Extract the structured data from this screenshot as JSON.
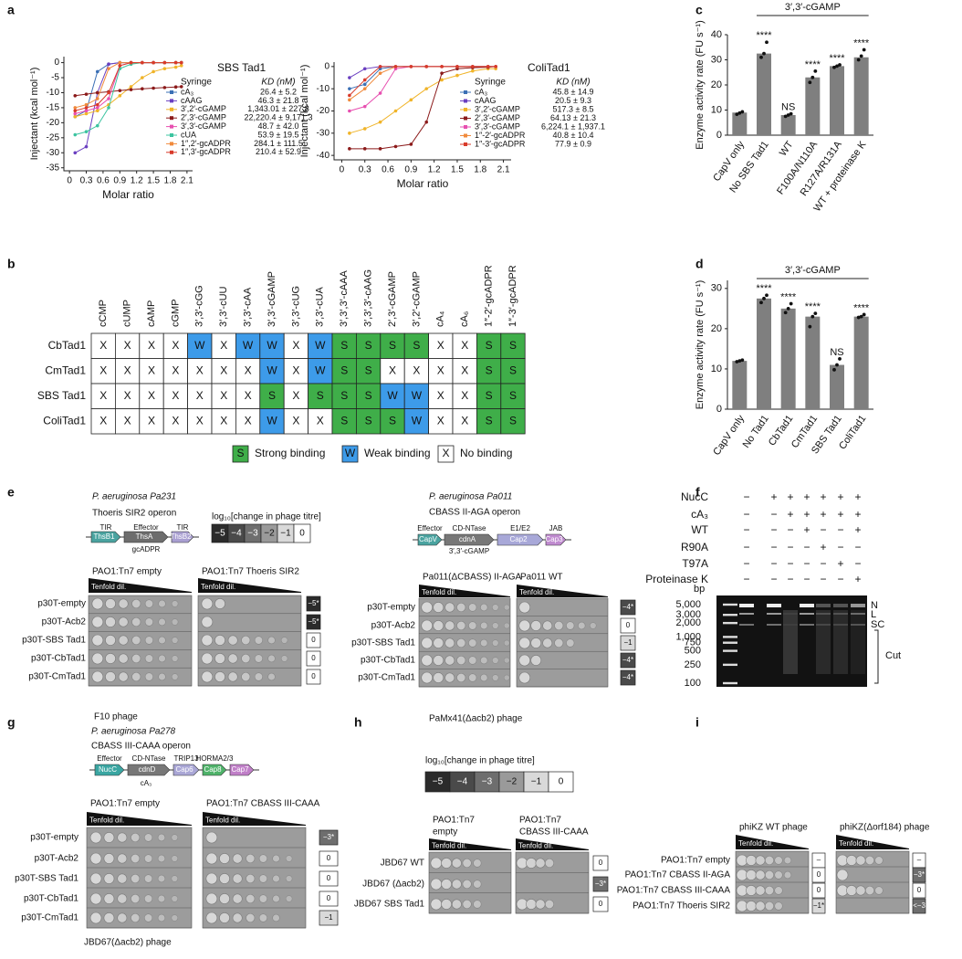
{
  "panel_labels": [
    "a",
    "b",
    "c",
    "d",
    "e",
    "f",
    "g",
    "h",
    "i"
  ],
  "chart_data": [
    {
      "type": "line",
      "title": "SBS Tad1",
      "legend_header": "Syringe",
      "legend_value_header": "KD (nM)",
      "xlabel": "Molar ratio",
      "ylabel": "Injectant (kcal mol⁻¹)",
      "x": [
        0.1,
        0.3,
        0.5,
        0.7,
        0.9,
        1.1,
        1.3,
        1.5,
        1.7,
        1.9,
        2.0
      ],
      "xlim": [
        -0.1,
        2.2
      ],
      "xticks": [
        0,
        0.3,
        0.6,
        0.9,
        1.2,
        1.5,
        1.8,
        2.1
      ],
      "ylim": [
        -36,
        2
      ],
      "yticks": [
        0,
        -5,
        -10,
        -15,
        -20,
        -25,
        -30,
        -35
      ],
      "series": [
        {
          "name": "cA₃",
          "color": "#3a6fb5",
          "kd": "26.4 ± 5.2",
          "values": [
            -18,
            -16,
            -3,
            -0.5,
            0,
            0,
            0,
            0,
            0,
            0,
            0
          ]
        },
        {
          "name": "cAAG",
          "color": "#6a3fc0",
          "kd": "46.3 ± 21.8",
          "values": [
            -30,
            -28,
            -10,
            -0.5,
            0,
            0,
            0,
            0,
            0,
            0,
            0
          ]
        },
        {
          "name": "3′,2′-cGAMP",
          "color": "#f0b429",
          "kd": "1,343.01 ± 227.8",
          "values": [
            -18,
            -17,
            -16,
            -14,
            -11,
            -8,
            -5,
            -3,
            -2,
            -1.5,
            -1
          ]
        },
        {
          "name": "2′,3′-cGAMP",
          "color": "#8b1a1a",
          "kd": "22,220.4 ± 9,171.3",
          "values": [
            -11,
            -10.5,
            -10,
            -9.7,
            -9.3,
            -9,
            -8.7,
            -8.5,
            -8.3,
            -8.1,
            -8
          ]
        },
        {
          "name": "3′,3′-cGAMP",
          "color": "#e74fb0",
          "kd": "48.7 ± 42.0",
          "values": [
            -17,
            -16,
            -15,
            -12,
            -1,
            0,
            0,
            0,
            0,
            0,
            0
          ]
        },
        {
          "name": "cUA",
          "color": "#3cc4a0",
          "kd": "53.9 ± 19.5",
          "values": [
            -24,
            -23,
            -21,
            -15,
            -2,
            -0.5,
            0,
            0,
            0,
            0,
            0
          ]
        },
        {
          "name": "1″,2′-gcADPR",
          "color": "#f08a3c",
          "kd": "284.1 ± 111.5",
          "values": [
            -15,
            -14,
            -12,
            -2,
            0,
            0,
            0,
            0,
            0,
            0,
            0
          ]
        },
        {
          "name": "1″,3′-gcADPR",
          "color": "#d83a2a",
          "kd": "210.4 ± 52.9",
          "values": [
            -16,
            -15,
            -14,
            -10,
            -1,
            0,
            0,
            0,
            0,
            0,
            0
          ]
        }
      ]
    },
    {
      "type": "line",
      "title": "ColiTad1",
      "legend_header": "Syringe",
      "legend_value_header": "KD (nM)",
      "xlabel": "Molar ratio",
      "ylabel": "Injectant (kcal mol⁻¹)",
      "x": [
        0.1,
        0.3,
        0.5,
        0.7,
        0.9,
        1.1,
        1.3,
        1.5,
        1.7,
        1.9,
        2.0
      ],
      "xlim": [
        -0.1,
        2.2
      ],
      "xticks": [
        0,
        0.3,
        0.6,
        0.9,
        1.2,
        1.5,
        1.8,
        2.1
      ],
      "ylim": [
        -42,
        2
      ],
      "yticks": [
        0,
        -10,
        -20,
        -30,
        -40
      ],
      "series": [
        {
          "name": "cA₃",
          "color": "#3a6fb5",
          "kd": "45.8 ± 14.9",
          "values": [
            -10,
            -8,
            -1,
            0,
            0,
            0,
            0,
            0,
            0,
            0,
            0
          ]
        },
        {
          "name": "cAAG",
          "color": "#6a3fc0",
          "kd": "20.5 ± 9.3",
          "values": [
            -5,
            -1,
            0,
            0,
            0,
            0,
            0,
            0,
            0,
            0,
            0
          ]
        },
        {
          "name": "3′,2′-cGAMP",
          "color": "#f0b429",
          "kd": "517.3 ± 8.5",
          "values": [
            -30,
            -28,
            -25,
            -20,
            -15,
            -10,
            -6,
            -4,
            -2,
            -1,
            -1
          ]
        },
        {
          "name": "2′,3′-cGAMP",
          "color": "#8b1a1a",
          "kd": "64.13 ± 21.3",
          "values": [
            -37,
            -37,
            -37,
            -36,
            -35,
            -25,
            -3,
            -1,
            -0.5,
            -0.3,
            0
          ]
        },
        {
          "name": "3′,3′-cGAMP",
          "color": "#e74fb0",
          "kd": "6,224.1 ± 1,937.1",
          "values": [
            -20,
            -18,
            -12,
            -1,
            0,
            0,
            0,
            0,
            0,
            0,
            0
          ]
        },
        {
          "name": "1″-2′-gcADPR",
          "color": "#f08a3c",
          "kd": "40.8 ± 10.4",
          "values": [
            -15,
            -10,
            -3,
            0,
            0,
            0,
            0,
            0,
            0,
            0,
            0
          ]
        },
        {
          "name": "1″-3′-gcADPR",
          "color": "#d83a2a",
          "kd": "77.9 ± 0.9",
          "values": [
            -13,
            -6,
            0,
            0,
            0,
            0,
            0,
            0,
            0,
            0,
            0
          ]
        }
      ]
    },
    {
      "type": "bar",
      "title": "3′,3′-cGAMP",
      "ylabel": "Enzyme activity rate (FU s⁻¹)",
      "color": "#7f7f7f",
      "categories": [
        "CapV only",
        "No SBS Tad1",
        "WT",
        "F100A/N110A",
        "R127A/R131A",
        "WT + proteinase K"
      ],
      "values": [
        9,
        32.5,
        8,
        23,
        27.5,
        31
      ],
      "points": [
        [
          8.3,
          8.8,
          9.3
        ],
        [
          31,
          32.5,
          37
        ],
        [
          7.5,
          8,
          8.5
        ],
        [
          21,
          23,
          25.5
        ],
        [
          27,
          27.5,
          28
        ],
        [
          30,
          31.5,
          34
        ]
      ],
      "significance": [
        null,
        "****",
        "NS",
        "****",
        "****",
        "****"
      ],
      "ylim": [
        0,
        40
      ],
      "yticks": [
        0,
        10,
        20,
        30,
        40
      ]
    },
    {
      "type": "bar",
      "title": "3′,3′-cGAMP",
      "ylabel": "Enzyme activity rate (FU s⁻¹)",
      "color": "#7f7f7f",
      "categories": [
        "CapV only",
        "No Tad1",
        "CbTad1",
        "CmTad1",
        "SBS Tad1",
        "ColiTad1"
      ],
      "values": [
        12,
        27.5,
        25,
        23,
        11,
        23
      ],
      "points": [
        [
          11.8,
          12,
          12.2
        ],
        [
          26.5,
          27.5,
          28.3
        ],
        [
          24,
          25,
          26.2
        ],
        [
          20.5,
          23,
          23.8
        ],
        [
          9.8,
          11,
          12.5
        ],
        [
          22.8,
          23,
          23.5
        ]
      ],
      "significance": [
        null,
        "****",
        "****",
        "****",
        "NS",
        "****"
      ],
      "ylim": [
        0,
        32
      ],
      "yticks": [
        0,
        10,
        20,
        30
      ]
    }
  ],
  "panel_b": {
    "columns": [
      "cCMP",
      "cUMP",
      "cAMP",
      "cGMP",
      "3′,3′-cGG",
      "3′,3′-cUU",
      "3′,3′-cAA",
      "3′,3′-cGAMP",
      "3′,3′-cUG",
      "3′,3′-cUA",
      "3′,3′,3′-cAAA",
      "3′,3′,3′-cAAG",
      "2′,3′-cGAMP",
      "3′,2′-cGAMP",
      "cA₄",
      "cA₆",
      "1″-2′-gcADPR",
      "1″-3′-gcADPR"
    ],
    "rows": [
      {
        "name": "CbTad1",
        "cells": [
          "X",
          "X",
          "X",
          "X",
          "W",
          "X",
          "W",
          "W",
          "X",
          "W",
          "S",
          "S",
          "S",
          "S",
          "X",
          "X",
          "S",
          "S"
        ]
      },
      {
        "name": "CmTad1",
        "cells": [
          "X",
          "X",
          "X",
          "X",
          "X",
          "X",
          "X",
          "W",
          "X",
          "W",
          "S",
          "S",
          "X",
          "X",
          "X",
          "X",
          "S",
          "S"
        ]
      },
      {
        "name": "SBS Tad1",
        "cells": [
          "X",
          "X",
          "X",
          "X",
          "X",
          "X",
          "X",
          "S",
          "X",
          "S",
          "S",
          "S",
          "W",
          "W",
          "X",
          "X",
          "S",
          "S"
        ]
      },
      {
        "name": "ColiTad1",
        "cells": [
          "X",
          "X",
          "X",
          "X",
          "X",
          "X",
          "X",
          "W",
          "X",
          "X",
          "S",
          "S",
          "S",
          "W",
          "X",
          "X",
          "S",
          "S"
        ]
      }
    ],
    "legend": [
      {
        "symbol": "S",
        "label": "Strong binding",
        "color": "#3fae49"
      },
      {
        "symbol": "W",
        "label": "Weak binding",
        "color": "#3d9be9"
      },
      {
        "symbol": "X",
        "label": "No binding",
        "color": "#ffffff"
      }
    ]
  },
  "titre_scale": {
    "title": "log₁₀[change in phage titre]",
    "ticks": [
      {
        "value": -5,
        "label": "−5"
      },
      {
        "value": -4,
        "label": "−4"
      },
      {
        "value": -3,
        "label": "−3"
      },
      {
        "value": -2,
        "label": "−2"
      },
      {
        "value": -1,
        "label": "−1"
      },
      0
    ]
  },
  "panel_e": {
    "left": {
      "species": "P. aeruginosa Pa231",
      "operon": "Thoeris SIR2 operon",
      "genes": [
        {
          "name": "ThsB1",
          "role": "TIR",
          "color": "#4aa3a0"
        },
        {
          "name": "ThsA",
          "role": "Effector",
          "color": "#6d6d6d"
        },
        {
          "name": "ThsB2",
          "role": "TIR",
          "color": "#a99fd1"
        }
      ],
      "product": "gcADPR",
      "dilution": "Tenfold dil.",
      "rows": [
        "p30T-empty",
        "p30T-Acb2",
        "p30T-SBS Tad1",
        "p30T-CbTad1",
        "p30T-CmTad1"
      ],
      "plates": [
        {
          "header": [
            "PAO1:Tn7 empty"
          ]
        },
        {
          "header": [
            "PAO1:Tn7 Thoeris SIR2"
          ],
          "titers": [
            {
              "value": -5,
              "label": "−5*"
            },
            {
              "value": -5,
              "label": "−5*"
            },
            0,
            0,
            0
          ]
        }
      ],
      "phage": "F10 phage"
    },
    "right": {
      "species": "P. aeruginosa Pa011",
      "operon": "CBASS II-AGA operon",
      "genes": [
        {
          "name": "CapV",
          "role": "Effector",
          "color": "#4aa3a0"
        },
        {
          "name": "cdnA",
          "role": "CD-NTase",
          "color": "#777777"
        },
        {
          "name": "Cap2",
          "role": "E1/E2",
          "color": "#a8a8d8"
        },
        {
          "name": "Cap3",
          "role": "JAB",
          "color": "#c08bd0"
        }
      ],
      "product": "3′,3′-cGAMP",
      "dilution": "Tenfold dil.",
      "rows": [
        "p30T-empty",
        "p30T-Acb2",
        "p30T-SBS Tad1",
        "p30T-CbTad1",
        "p30T-CmTad1"
      ],
      "plates": [
        {
          "header": [
            "Pa011(ΔCBASS) II-AGA"
          ]
        },
        {
          "header": [
            "Pa011 WT"
          ],
          "titers": [
            {
              "value": -4,
              "label": "−4*"
            },
            0,
            {
              "value": -1,
              "label": "−1"
            },
            {
              "value": -4,
              "label": "−4*"
            },
            {
              "value": -4,
              "label": "−4*"
            }
          ]
        }
      ],
      "phage": "PaMx41(Δacb2) phage"
    }
  },
  "panel_f": {
    "conditions": [
      {
        "name": "NucC",
        "lanes": [
          "−",
          "+",
          "+",
          "+",
          "+",
          "+",
          "+"
        ]
      },
      {
        "name": "cA₃",
        "lanes": [
          "−",
          "−",
          "+",
          "+",
          "+",
          "+",
          "+"
        ]
      },
      {
        "name": "WT",
        "lanes": [
          "−",
          "−",
          "−",
          "+",
          "−",
          "−",
          "+"
        ]
      },
      {
        "name": "R90A",
        "lanes": [
          "−",
          "−",
          "−",
          "−",
          "+",
          "−",
          "−"
        ]
      },
      {
        "name": "T97A",
        "lanes": [
          "−",
          "−",
          "−",
          "−",
          "−",
          "+",
          "−"
        ]
      },
      {
        "name": "Proteinase K",
        "lanes": [
          "−",
          "−",
          "−",
          "−",
          "−",
          "−",
          "+"
        ]
      }
    ],
    "unit": "bp",
    "ladder": [
      {
        "value": 5000,
        "label": "5,000"
      },
      {
        "value": 3000,
        "label": "3,000"
      },
      {
        "value": 2000,
        "label": "2,000"
      },
      {
        "value": 1000,
        "label": "1,000"
      },
      750,
      500,
      250,
      100
    ],
    "bands": [
      "N",
      "L",
      "SC"
    ],
    "cut": "Cut"
  },
  "panel_g": {
    "species": "P. aeruginosa Pa278",
    "operon": "CBASS III-CAAA operon",
    "genes": [
      {
        "name": "NucC",
        "role": "Effector",
        "color": "#3aa6a2"
      },
      {
        "name": "cdnD",
        "role": "CD-NTase",
        "color": "#777777"
      },
      {
        "name": "Cap6",
        "role": "TRIP13",
        "color": "#aaa7d6"
      },
      {
        "name": "Cap8",
        "role": "HORMA2/3",
        "color": "#4fb36a"
      },
      {
        "name": "Cap7",
        "role": null,
        "color": "#c07fc8"
      }
    ],
    "product": "cA₃",
    "dilution": "Tenfold dil.",
    "rows": [
      "p30T-empty",
      "p30T-Acb2",
      "p30T-SBS Tad1",
      "p30T-CbTad1",
      "p30T-CmTad1"
    ],
    "plates": [
      {
        "header": [
          "PAO1:Tn7 empty"
        ]
      },
      {
        "header": [
          "PAO1:Tn7 CBASS III-CAAA"
        ],
        "titers": [
          {
            "value": -3,
            "label": "−3*"
          },
          0,
          0,
          0,
          {
            "value": -1,
            "label": "−1"
          }
        ]
      }
    ],
    "phage": "JBD67(Δacb2) phage"
  },
  "panel_h": {
    "dilution": "Tenfold dil.",
    "rows": [
      "JBD67 WT",
      "JBD67 (Δacb2)",
      "JBD67 SBS Tad1"
    ],
    "plates": [
      {
        "header": [
          "PAO1:Tn7",
          "empty"
        ]
      },
      {
        "header": [
          "PAO1:Tn7",
          "CBASS III-CAAA"
        ],
        "titers": [
          0,
          {
            "value": -3,
            "label": "−3*"
          },
          0
        ]
      }
    ]
  },
  "panel_i": {
    "dilution": "Tenfold dil.",
    "rows": [
      "PAO1:Tn7 empty",
      "PAO1:Tn7 CBASS II-AGA",
      "PAO1:Tn7 CBASS III-CAAA",
      "PAO1:Tn7 Thoeris SIR2"
    ],
    "plates": [
      {
        "header": [
          "phiKZ WT phage"
        ],
        "titers": [
          {
            "value": null,
            "label": "–"
          },
          0,
          0,
          {
            "value": -1,
            "label": "−1*"
          }
        ]
      },
      {
        "header": [
          "phiKZ(Δorf184) phage"
        ],
        "titers": [
          {
            "value": null,
            "label": "–"
          },
          {
            "value": -3,
            "label": "−3*"
          },
          0,
          {
            "value": -3,
            "label": "<−3"
          }
        ]
      }
    ]
  }
}
